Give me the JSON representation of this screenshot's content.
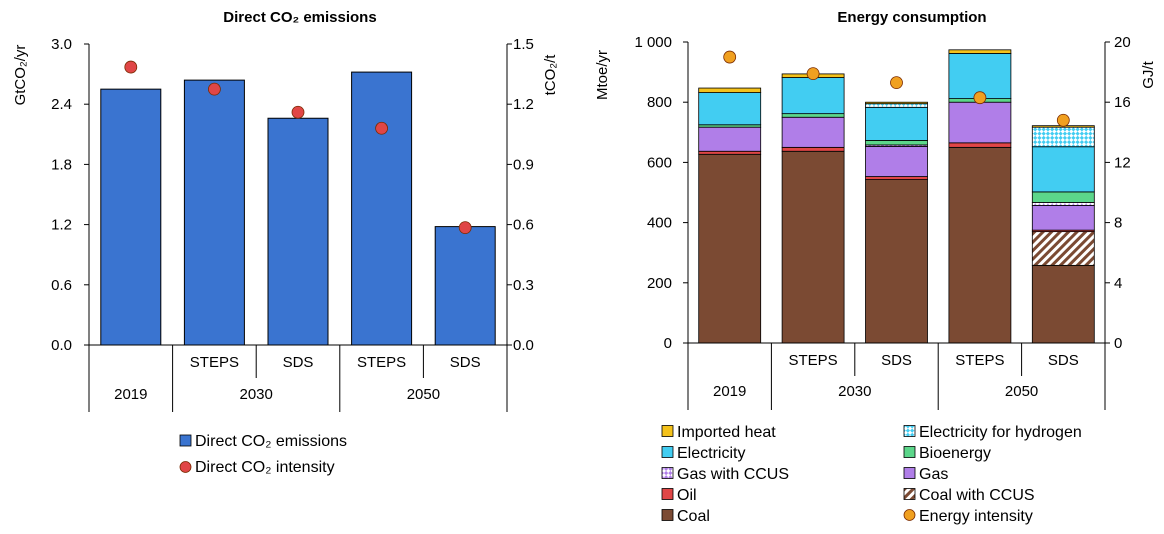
{
  "chart_data": [
    {
      "type": "bar",
      "title": "Direct CO₂ emissions",
      "ylabel": "GtCO₂/yr",
      "y2label": "tCO₂/t",
      "ylim": [
        0,
        3.0
      ],
      "y2lim": [
        0,
        1.5
      ],
      "yticks": [
        "0.0",
        "0.6",
        "1.2",
        "1.8",
        "2.4",
        "3.0"
      ],
      "y2ticks": [
        "0.0",
        "0.3",
        "0.6",
        "0.9",
        "1.2",
        "1.5"
      ],
      "categories": [
        "",
        "STEPS",
        "SDS",
        "STEPS",
        "SDS"
      ],
      "groups": [
        {
          "label": "2019",
          "span": 1
        },
        {
          "label": "2030",
          "span": 2
        },
        {
          "label": "2050",
          "span": 2
        }
      ],
      "series": [
        {
          "name": "Direct CO₂ emissions",
          "kind": "bar",
          "axis": "left",
          "color": "#3a74d0",
          "values": [
            2.55,
            2.64,
            2.26,
            2.72,
            1.18
          ]
        },
        {
          "name": "Direct CO₂ intensity",
          "kind": "marker",
          "axis": "right",
          "color": "#e04646",
          "values": [
            1.385,
            1.275,
            1.16,
            1.08,
            0.585
          ]
        }
      ],
      "legend": "bottom"
    },
    {
      "type": "bar",
      "stacked": true,
      "title": "Energy consumption",
      "ylabel": "Mtoe/yr",
      "y2label": "GJ/t",
      "ylim": [
        0,
        1000
      ],
      "y2lim": [
        0,
        20
      ],
      "yticks": [
        "0",
        "200",
        "400",
        "600",
        "800",
        "1 000"
      ],
      "y2ticks": [
        "0",
        "4",
        "8",
        "12",
        "16",
        "20"
      ],
      "categories": [
        "",
        "STEPS",
        "SDS",
        "STEPS",
        "SDS"
      ],
      "groups": [
        {
          "label": "2019",
          "span": 1
        },
        {
          "label": "2030",
          "span": 2
        },
        {
          "label": "2050",
          "span": 2
        }
      ],
      "series": [
        {
          "name": "Coal",
          "color": "#7b4a33",
          "pattern": "none",
          "values": [
            627,
            637,
            543,
            650,
            258
          ]
        },
        {
          "name": "Coal with CCUS",
          "color": "#7b4a33",
          "pattern": "hatch",
          "values": [
            0,
            0,
            0,
            0,
            112
          ]
        },
        {
          "name": "Oil",
          "color": "#e04646",
          "pattern": "none",
          "values": [
            10,
            13,
            10,
            15,
            5
          ]
        },
        {
          "name": "Gas",
          "color": "#b07ee8",
          "pattern": "none",
          "values": [
            80,
            100,
            100,
            135,
            82
          ]
        },
        {
          "name": "Gas with CCUS",
          "color": "#b07ee8",
          "pattern": "check",
          "values": [
            0,
            0,
            5,
            0,
            10
          ]
        },
        {
          "name": "Bioenergy",
          "color": "#5cd68a",
          "pattern": "none",
          "values": [
            8,
            12,
            15,
            12,
            35
          ]
        },
        {
          "name": "Electricity",
          "color": "#42cdf2",
          "pattern": "none",
          "values": [
            107,
            120,
            110,
            150,
            150
          ]
        },
        {
          "name": "Electricity for hydrogen",
          "color": "#42cdf2",
          "pattern": "check",
          "values": [
            0,
            0,
            12,
            0,
            65
          ]
        },
        {
          "name": "Imported heat",
          "color": "#f4c21b",
          "pattern": "none",
          "values": [
            15,
            12,
            5,
            12,
            5
          ]
        },
        {
          "name": "Energy intensity",
          "kind": "marker",
          "axis": "right",
          "color": "#f0a020",
          "values": [
            19.0,
            17.9,
            17.3,
            16.3,
            14.8
          ]
        }
      ],
      "legend_order": [
        "Imported heat",
        "Electricity for hydrogen",
        "Electricity",
        "Bioenergy",
        "Gas with CCUS",
        "Gas",
        "Oil",
        "Coal with CCUS",
        "Coal",
        "Energy intensity"
      ],
      "legend": "bottom"
    }
  ]
}
